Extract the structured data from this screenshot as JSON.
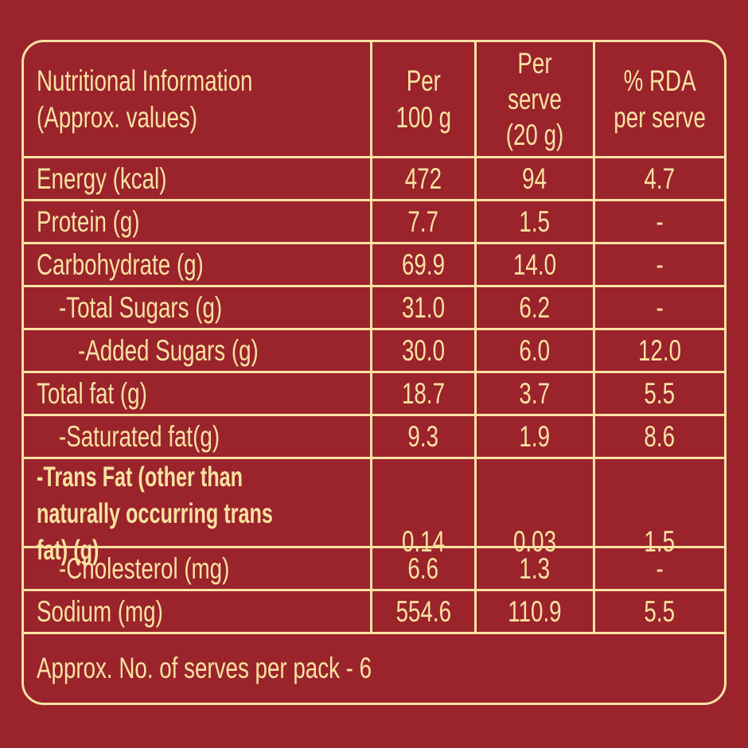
{
  "colors": {
    "background": "#9A232C",
    "foreground": "#F8E2A0"
  },
  "table": {
    "header": {
      "title": "Nutritional Information\n(Approx. values)",
      "col_per_100g": "Per\n100 g",
      "col_per_serve": "Per serve\n(20 g)",
      "col_rda": "% RDA\nper serve"
    },
    "rows": [
      {
        "label": "Energy (kcal)",
        "per_100g": "472",
        "per_serve": "94",
        "rda": "4.7"
      },
      {
        "label": "Protein (g)",
        "per_100g": "7.7",
        "per_serve": "1.5",
        "rda": "-"
      },
      {
        "label": "Carbohydrate (g)",
        "per_100g": "69.9",
        "per_serve": "14.0",
        "rda": "-"
      },
      {
        "label": "-Total Sugars (g)",
        "per_100g": "31.0",
        "per_serve": "6.2",
        "rda": "-"
      },
      {
        "label": "-Added Sugars (g)",
        "per_100g": "30.0",
        "per_serve": "6.0",
        "rda": "12.0"
      },
      {
        "label": "Total fat (g)",
        "per_100g": "18.7",
        "per_serve": "3.7",
        "rda": "5.5"
      },
      {
        "label": "-Saturated fat(g)",
        "per_100g": "9.3",
        "per_serve": "1.9",
        "rda": "8.6"
      },
      {
        "label": "-Trans Fat (other than\nnaturally occurring trans fat) (g)",
        "per_100g": "0.14",
        "per_serve": "0.03",
        "rda": "1.5"
      },
      {
        "label": "-Cholesterol (mg)",
        "per_100g": "6.6",
        "per_serve": "1.3",
        "rda": "-"
      },
      {
        "label": "Sodium (mg)",
        "per_100g": "554.6",
        "per_serve": "110.9",
        "rda": "5.5"
      }
    ],
    "footer": {
      "serves_note": "Approx. No. of serves per pack - 6"
    }
  }
}
